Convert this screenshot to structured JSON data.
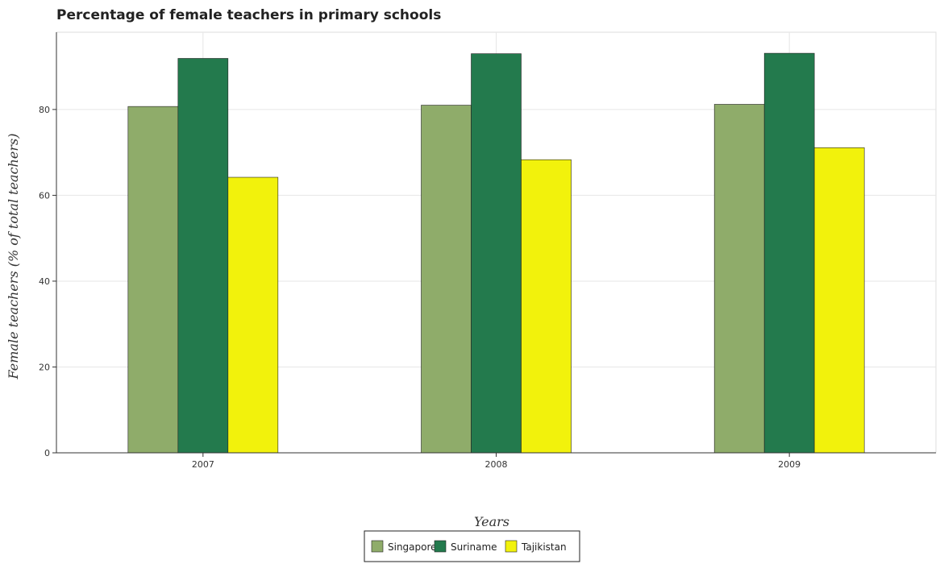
{
  "chart_data": {
    "type": "bar",
    "title": "Percentage of female teachers in primary schools",
    "xlabel": "Years",
    "ylabel": "Female teachers (% of total teachers)",
    "categories": [
      "2007",
      "2008",
      "2009"
    ],
    "series": [
      {
        "name": "Singapore",
        "color": "#8fac6a",
        "values": [
          80.7,
          81.0,
          81.2
        ]
      },
      {
        "name": "Suriname",
        "color": "#237a4d",
        "values": [
          91.9,
          93.0,
          93.1
        ]
      },
      {
        "name": "Tajikistan",
        "color": "#f2f20c",
        "values": [
          64.2,
          68.3,
          71.1
        ]
      }
    ],
    "ylim": [
      0,
      98
    ],
    "yticks": [
      0,
      20,
      40,
      60,
      80
    ],
    "grid": true,
    "legend": "bottom-center"
  }
}
